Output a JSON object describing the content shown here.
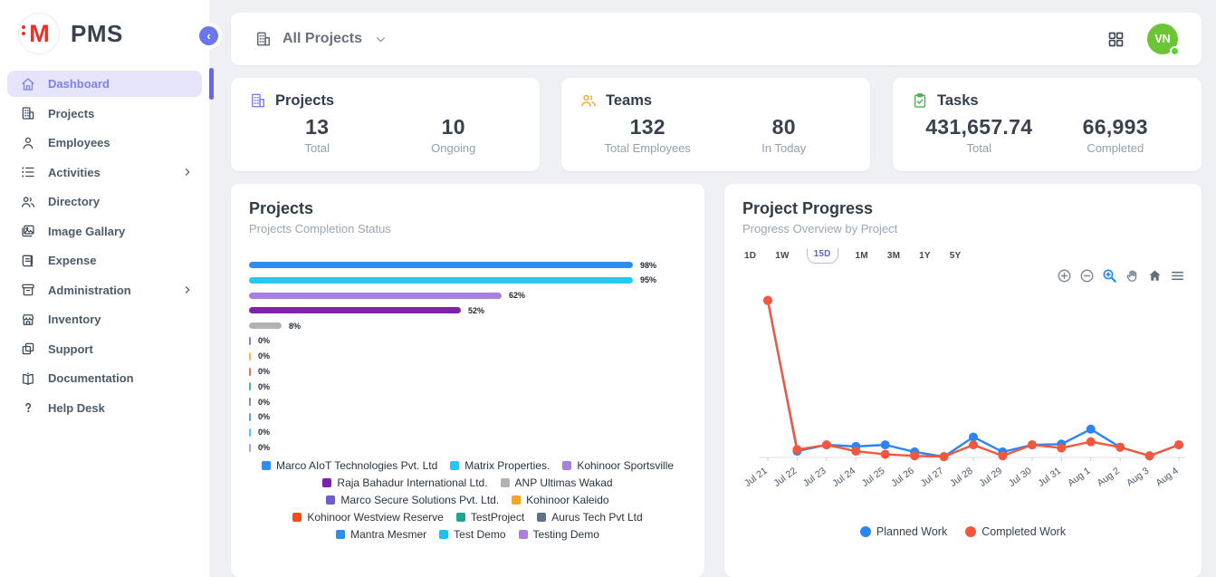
{
  "brand": {
    "name": "PMS",
    "logo_letter": "M",
    "logo_color": "#e0352b"
  },
  "sidebar": {
    "collapse_icon": "chevron-left",
    "items": [
      {
        "label": "Dashboard",
        "icon": "home",
        "active": true,
        "submenu": false
      },
      {
        "label": "Projects",
        "icon": "building",
        "active": false,
        "submenu": false
      },
      {
        "label": "Employees",
        "icon": "person",
        "active": false,
        "submenu": false
      },
      {
        "label": "Activities",
        "icon": "list",
        "active": false,
        "submenu": true
      },
      {
        "label": "Directory",
        "icon": "people",
        "active": false,
        "submenu": false
      },
      {
        "label": "Image Gallary",
        "icon": "image",
        "active": false,
        "submenu": false
      },
      {
        "label": "Expense",
        "icon": "receipt",
        "active": false,
        "submenu": false
      },
      {
        "label": "Administration",
        "icon": "archive",
        "active": false,
        "submenu": true
      },
      {
        "label": "Inventory",
        "icon": "store",
        "active": false,
        "submenu": false
      },
      {
        "label": "Support",
        "icon": "copy",
        "active": false,
        "submenu": false
      },
      {
        "label": "Documentation",
        "icon": "book",
        "active": false,
        "submenu": false
      },
      {
        "label": "Help Desk",
        "icon": "question",
        "active": false,
        "submenu": false
      }
    ]
  },
  "topbar": {
    "filter_label": "All Projects",
    "avatar_initials": "VN"
  },
  "stat_cards": [
    {
      "title": "Projects",
      "icon": "building",
      "icon_color": "#7b7ff2",
      "metrics": [
        {
          "value": "13",
          "label": "Total"
        },
        {
          "value": "10",
          "label": "Ongoing"
        }
      ]
    },
    {
      "title": "Teams",
      "icon": "people",
      "icon_color": "#f5a623",
      "metrics": [
        {
          "value": "132",
          "label": "Total Employees"
        },
        {
          "value": "80",
          "label": "In Today"
        }
      ]
    },
    {
      "title": "Tasks",
      "icon": "clipboard",
      "icon_color": "#4caf50",
      "metrics": [
        {
          "value": "431,657.74",
          "label": "Total"
        },
        {
          "value": "66,993",
          "label": "Completed"
        }
      ]
    }
  ],
  "projects_chart": {
    "title": "Projects",
    "subtitle": "Projects Completion Status"
  },
  "progress_chart": {
    "title": "Project Progress",
    "subtitle": "Progress Overview by Project",
    "ranges": [
      "1D",
      "1W",
      "15D",
      "1M",
      "3M",
      "1Y",
      "5Y"
    ],
    "active_range": "15D"
  },
  "chart_data": [
    {
      "type": "bar",
      "orientation": "horizontal",
      "title": "Projects",
      "subtitle": "Projects Completion Status",
      "categories": [
        "Marco AIoT Technologies Pvt. Ltd",
        "Matrix Properties.",
        "Kohinoor Sportsville",
        "Raja Bahadur International Ltd.",
        "ANP Ultimas Wakad",
        "Marco Secure Solutions Pvt. Ltd.",
        "Kohinoor Kaleido",
        "Kohinoor Westview Reserve",
        "TestProject",
        "Aurus Tech Pvt Ltd",
        "Mantra Mesmer",
        "Test Demo",
        "Testing Demo"
      ],
      "values": [
        98,
        95,
        62,
        52,
        8,
        0,
        0,
        0,
        0,
        0,
        0,
        0,
        0
      ],
      "value_labels": [
        "98%",
        "95%",
        "62%",
        "52%",
        "8%",
        "0%",
        "0%",
        "0%",
        "0%",
        "0%",
        "0%",
        "0%",
        "0%"
      ],
      "colors": [
        "#2d8ef5",
        "#29c5f5",
        "#a97fe0",
        "#7d22ad",
        "#b3b3b3",
        "#6f5ecb",
        "#ffa21f",
        "#f04e1f",
        "#1fa58f",
        "#5c738a",
        "#2d8ef5",
        "#18c3f0",
        "#a97fe0"
      ],
      "unit": "%",
      "xlim": [
        0,
        100
      ],
      "grid": false,
      "legend_position": "bottom"
    },
    {
      "type": "line",
      "title": "Project Progress",
      "x": [
        "Jul 21",
        "Jul 22",
        "Jul 23",
        "Jul 24",
        "Jul 25",
        "Jul 26",
        "Jul 27",
        "Jul 28",
        "Jul 29",
        "Jul 30",
        "Jul 31",
        "Aug 1",
        "Aug 2",
        "Aug 3",
        "Aug 4"
      ],
      "series": [
        {
          "name": "Planned Work",
          "color": "#2b85f5",
          "values": [
            100,
            4,
            8,
            7,
            8,
            3.5,
            0.5,
            13,
            3.5,
            8,
            8.5,
            18,
            6.5,
            1,
            8
          ]
        },
        {
          "name": "Completed Work",
          "color": "#f4573d",
          "values": [
            100,
            5,
            8,
            4,
            2,
            1,
            0.5,
            8,
            1,
            8,
            6,
            10,
            6.5,
            1,
            8
          ]
        }
      ],
      "ylim": [
        0,
        105
      ],
      "grid": false,
      "legend_position": "bottom",
      "toolbar": [
        "zoom-in",
        "zoom-out",
        "box-zoom",
        "pan",
        "reset-home",
        "menu"
      ]
    }
  ]
}
